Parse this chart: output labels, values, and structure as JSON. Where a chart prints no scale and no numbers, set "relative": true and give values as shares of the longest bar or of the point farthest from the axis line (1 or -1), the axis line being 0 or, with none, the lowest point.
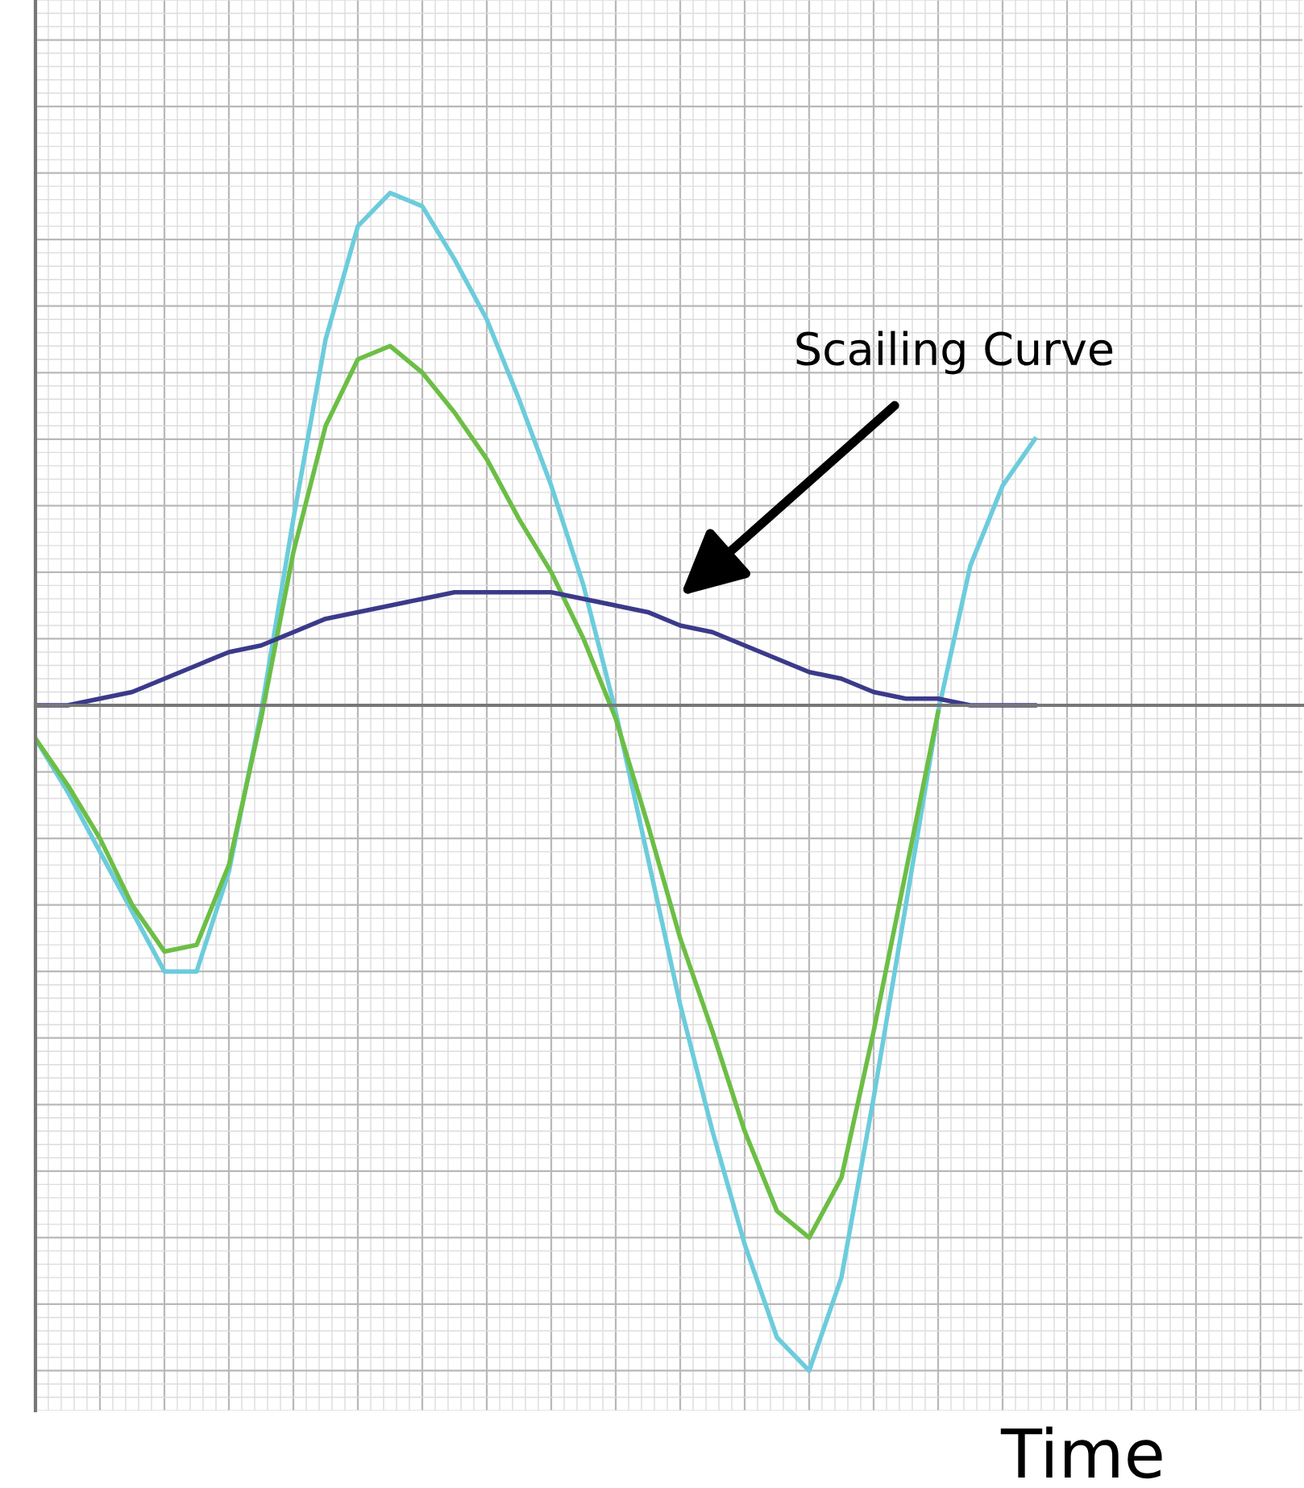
{
  "chart_data": {
    "type": "line",
    "relative": true,
    "xlabel": "Time",
    "annotations": [
      "Scailing Curve"
    ],
    "grid": true,
    "tick_labels": false,
    "marker": "none",
    "line_style": "solid",
    "categories": [
      null,
      null,
      null,
      null,
      null,
      null,
      null,
      null,
      null,
      null,
      null,
      null,
      null,
      null,
      null,
      null,
      null,
      null,
      null,
      null,
      null,
      null,
      null,
      null,
      null,
      null,
      null,
      null,
      null,
      null,
      null,
      null,
      null,
      null,
      null,
      null,
      null,
      null,
      null,
      null
    ],
    "series": [
      {
        "color": "#6cccdc",
        "values": [
          -0.05,
          -0.13,
          -0.22,
          -0.31,
          -0.4,
          -0.4,
          -0.25,
          -0.01,
          0.28,
          0.55,
          0.72,
          0.77,
          0.75,
          0.67,
          0.58,
          0.46,
          0.33,
          0.18,
          -0.01,
          -0.23,
          -0.45,
          -0.64,
          -0.81,
          -0.95,
          -1,
          -0.86,
          -0.59,
          -0.3,
          -0.01,
          0.21,
          0.33,
          0.4,
          null,
          null,
          null,
          null,
          null,
          null,
          null,
          null
        ]
      },
      {
        "color": "#6cbe45",
        "values": [
          -0.05,
          -0.12,
          -0.2,
          -0.3,
          -0.37,
          -0.36,
          -0.24,
          -0.02,
          0.23,
          0.42,
          0.52,
          0.54,
          0.5,
          0.44,
          0.37,
          0.28,
          0.2,
          0.1,
          -0.02,
          -0.18,
          -0.35,
          -0.49,
          -0.64,
          -0.76,
          -0.8,
          -0.71,
          -0.49,
          -0.25,
          -0.01,
          null,
          null,
          null,
          null,
          null,
          null,
          null,
          null,
          null,
          null,
          null
        ]
      },
      {
        "color": "#3b3a8a",
        "values": [
          0,
          0,
          0.01,
          0.02,
          0.04,
          0.06,
          0.08,
          0.09,
          0.11,
          0.13,
          0.14,
          0.15,
          0.16,
          0.17,
          0.17,
          0.17,
          0.17,
          0.16,
          0.15,
          0.14,
          0.12,
          0.11,
          0.09,
          0.07,
          0.05,
          0.04,
          0.02,
          0.01,
          0.01,
          0,
          0,
          0,
          null,
          null,
          null,
          null,
          null,
          null,
          null,
          null
        ]
      }
    ]
  }
}
